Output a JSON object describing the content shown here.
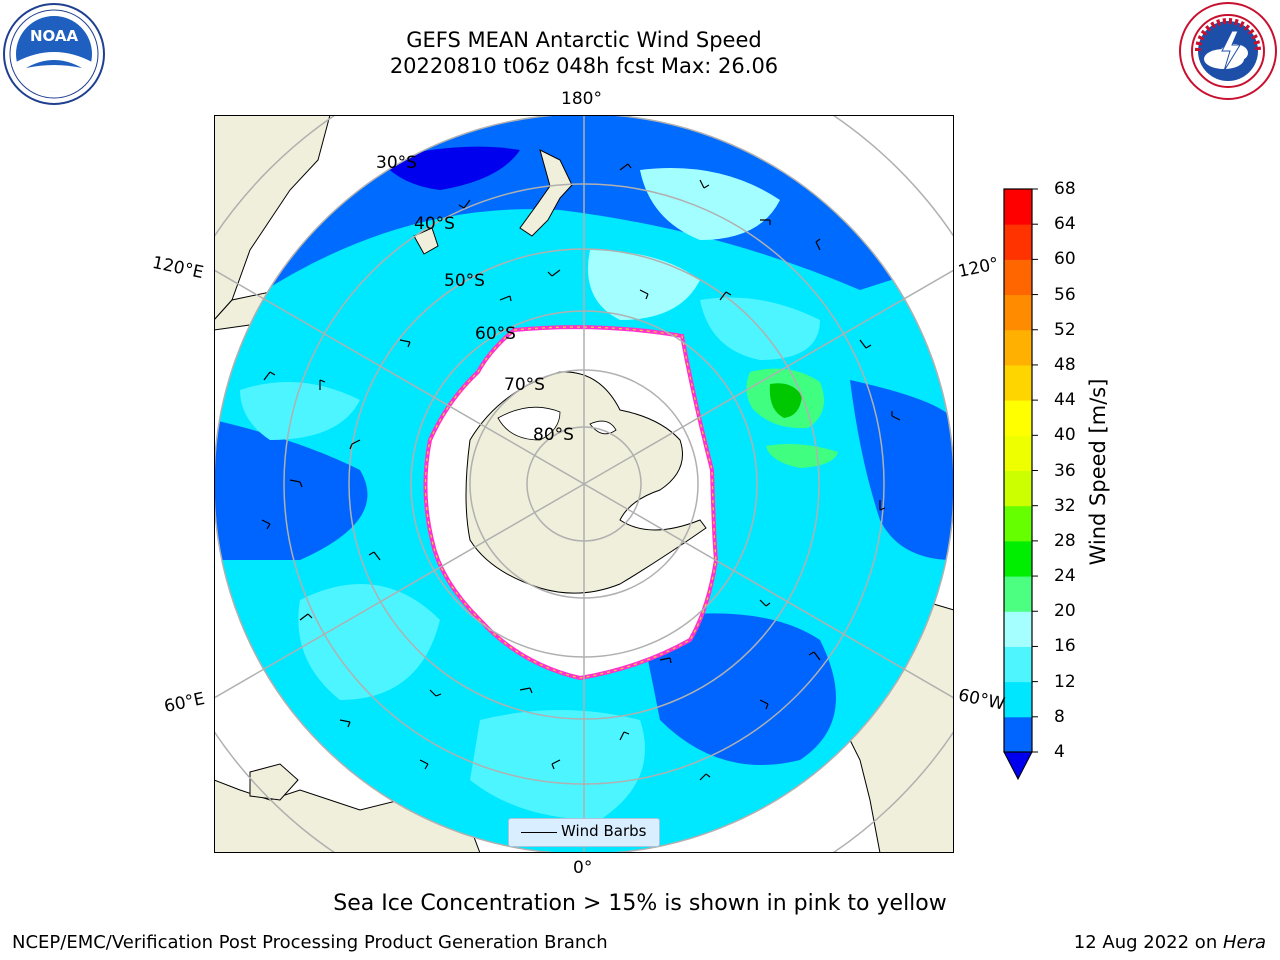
{
  "header": {
    "title_line1": "GEFS MEAN Antarctic Wind Speed",
    "title_line2": "20220810 t06z 048h fcst   Max: 26.06"
  },
  "logos": {
    "left": "noaa-logo",
    "right": "national-weather-service-logo"
  },
  "map": {
    "projection": "south-polar-stereographic",
    "longitude_labels": {
      "top": "180°",
      "upper_left": "120°E",
      "upper_right": "120°",
      "lower_left": "60°E",
      "lower_right": "60°W",
      "bottom": "0°"
    },
    "latitude_labels": [
      "30°S",
      "40°S",
      "50°S",
      "60°S",
      "70°S",
      "80°S"
    ],
    "legend_label": "Wind Barbs",
    "colors": {
      "ocean_4_8": "#0064ff",
      "ocean_8_12": "#00e8ff",
      "ocean_12_16": "#4cf5ff",
      "ocean_16_20": "#a3ffff",
      "ocean_20_24": "#40ff80",
      "land": "#efefdb",
      "sea_ice_edge": "#ff33cc",
      "grid": "#b0b0b0"
    }
  },
  "colorbar": {
    "label": "Wind Speed [m/s]",
    "ticks": [
      "68",
      "64",
      "60",
      "56",
      "52",
      "48",
      "44",
      "40",
      "36",
      "32",
      "28",
      "24",
      "20",
      "16",
      "12",
      "8",
      "4"
    ],
    "colors": [
      "#0064ff",
      "#00e6ff",
      "#4ef5ff",
      "#a5ffff",
      "#4dff80",
      "#00ee00",
      "#66ff00",
      "#ccff00",
      "#eeff00",
      "#ffff00",
      "#ffd500",
      "#ffb000",
      "#ff8c00",
      "#ff6600",
      "#ff3300",
      "#ff0000"
    ],
    "under_color": "#0000ee"
  },
  "caption": "Sea Ice Concentration > 15% is shown in pink to yellow",
  "footer": {
    "left": "NCEP/EMC/Verification Post Processing Product Generation Branch",
    "date": "12 Aug 2022 on ",
    "host": "Hera"
  }
}
